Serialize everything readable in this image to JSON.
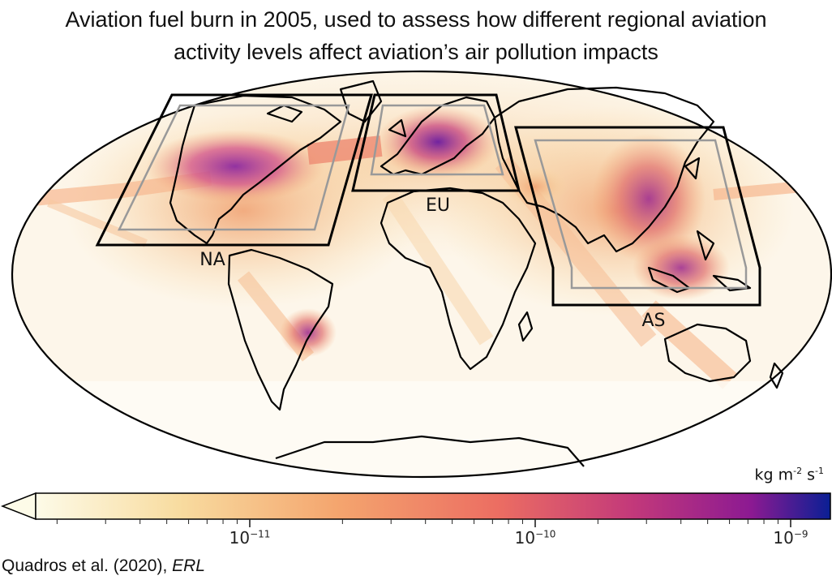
{
  "title": {
    "line1": "Aviation fuel burn in 2005, used to assess how different regional aviation",
    "line2": "activity levels affect aviation’s air pollution impacts"
  },
  "regions": [
    {
      "id": "na",
      "label": "NA"
    },
    {
      "id": "eu",
      "label": "EU"
    },
    {
      "id": "as",
      "label": "AS"
    }
  ],
  "colorbar": {
    "unit_base": "kg m",
    "unit_exp1": "-2",
    "unit_mid": " s",
    "unit_exp2": "-1",
    "scale": "log",
    "colormap": "plasma-like (white → orange → magenta → purple → blue)",
    "colors": [
      "#fdfbe8",
      "#f8dca0",
      "#f4a56e",
      "#ec6e62",
      "#c3397a",
      "#8c1a92",
      "#0a1f94"
    ],
    "extend": "min",
    "ticks": [
      {
        "base": "10",
        "exp": "−11"
      },
      {
        "base": "10",
        "exp": "−10"
      },
      {
        "base": "10",
        "exp": "−9"
      }
    ]
  },
  "citation": {
    "authors": "Quadros et al. (2020), ",
    "journal": "ERL"
  },
  "projection": "Mollweide"
}
